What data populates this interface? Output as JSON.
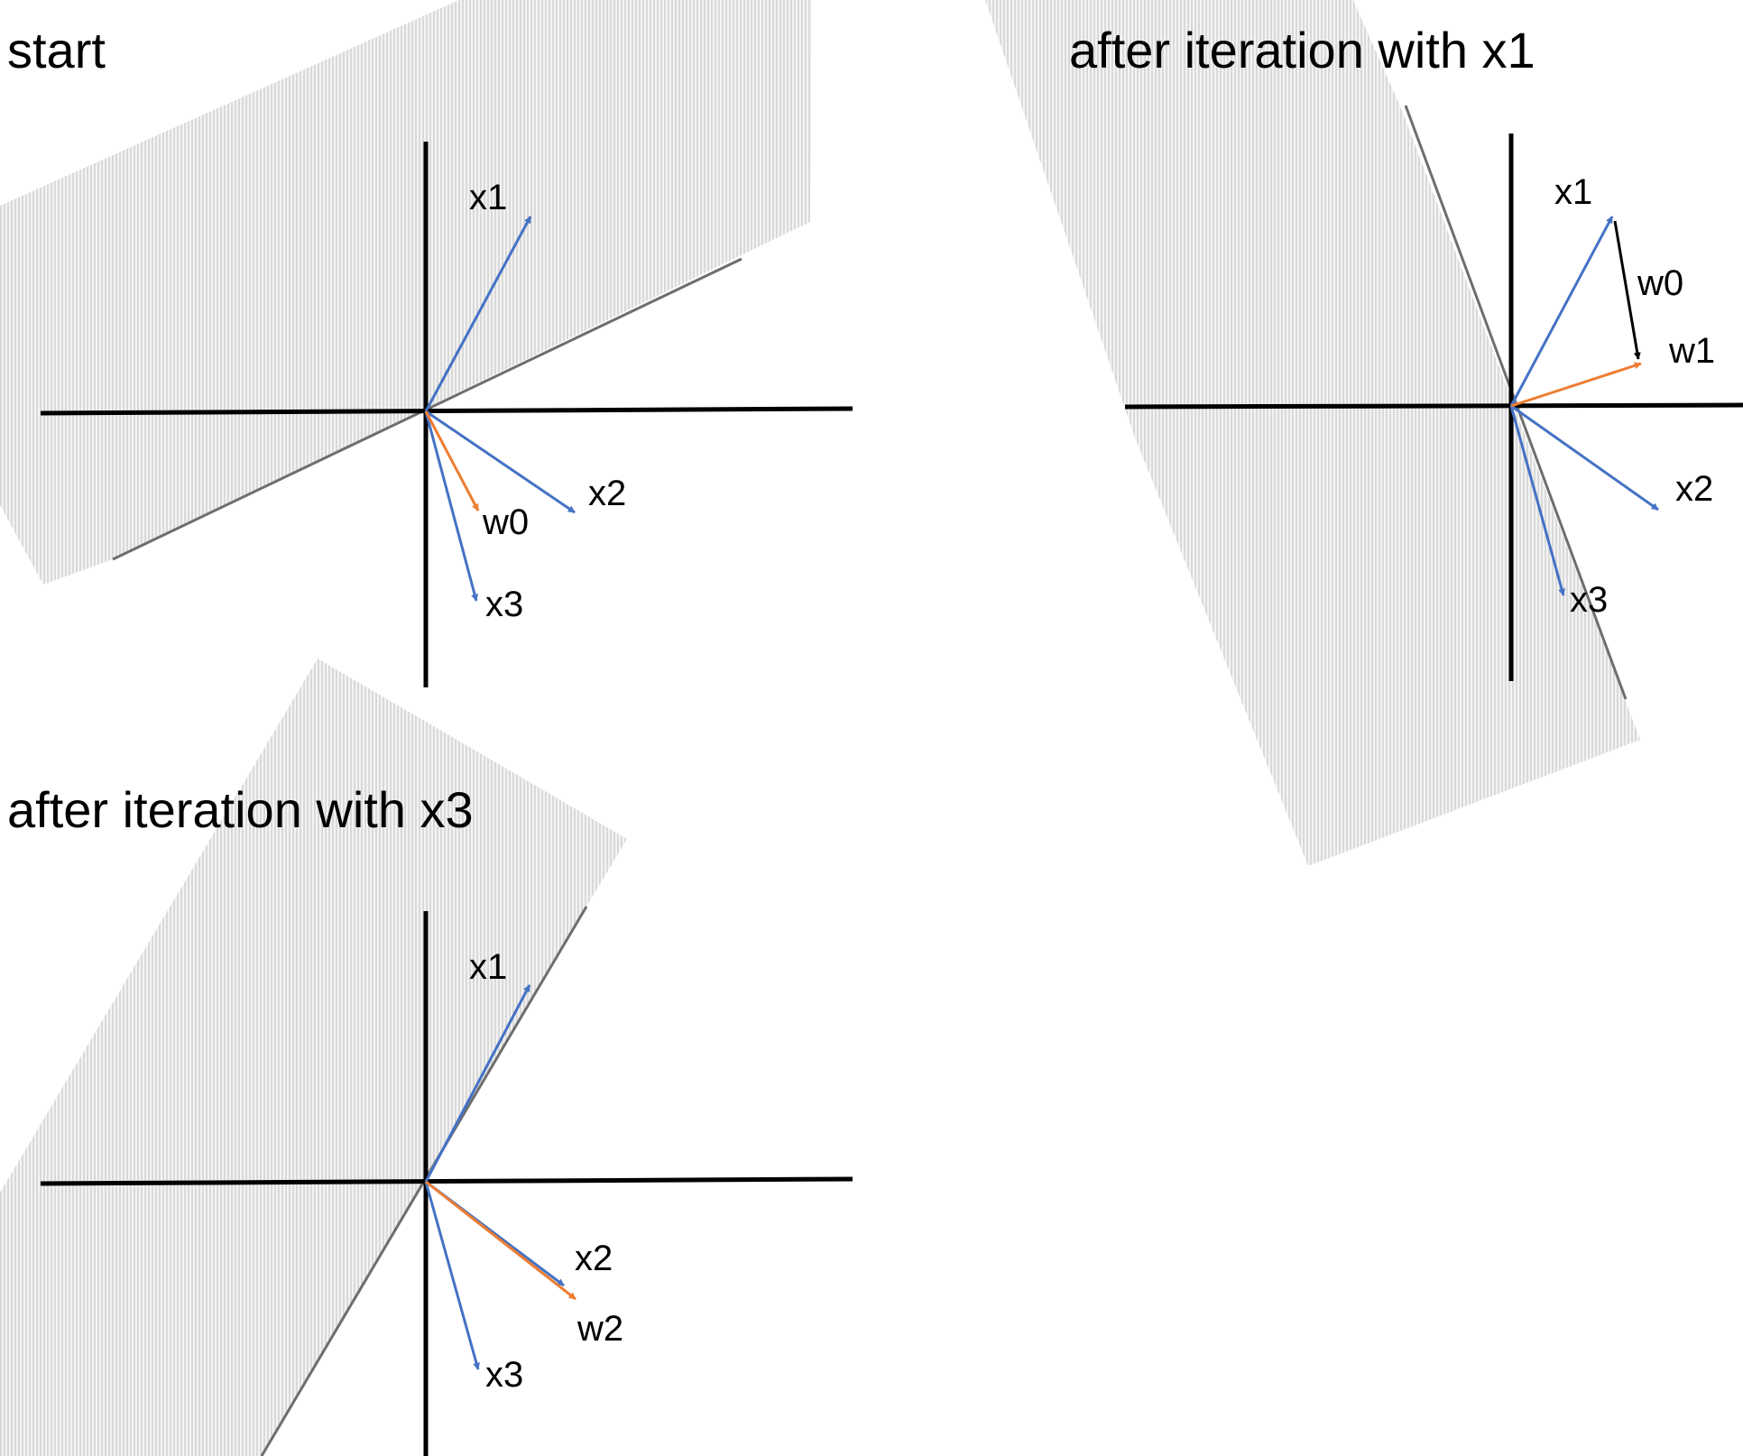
{
  "colors": {
    "input_vector": "#4472C4",
    "weight_vector": "#ED7D31",
    "update_vector": "#000000",
    "axis": "#000000",
    "boundary": "#6E6E6E",
    "region": "#D9D9D9"
  },
  "panels": [
    {
      "title": "start",
      "vectors": [
        {
          "label": "x1",
          "kind": "input"
        },
        {
          "label": "x2",
          "kind": "input"
        },
        {
          "label": "x3",
          "kind": "input"
        },
        {
          "label": "w0",
          "kind": "weight"
        }
      ]
    },
    {
      "title": "after iteration with x1",
      "vectors": [
        {
          "label": "x1",
          "kind": "input"
        },
        {
          "label": "x2",
          "kind": "input"
        },
        {
          "label": "x3",
          "kind": "input"
        },
        {
          "label": "w0",
          "kind": "update"
        },
        {
          "label": "w1",
          "kind": "weight"
        }
      ]
    },
    {
      "title": "after iteration with x3",
      "vectors": [
        {
          "label": "x1",
          "kind": "input"
        },
        {
          "label": "x2",
          "kind": "input"
        },
        {
          "label": "x3",
          "kind": "input"
        },
        {
          "label": "w2",
          "kind": "weight"
        }
      ]
    }
  ]
}
